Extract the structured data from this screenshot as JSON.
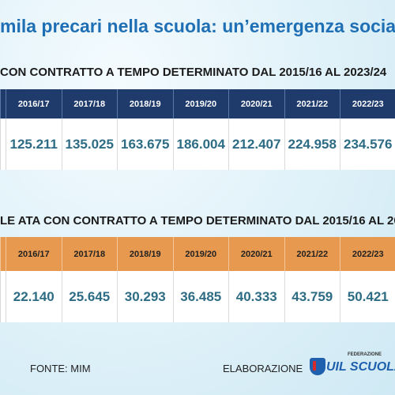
{
  "title": "mila precari nella scuola: un’emergenza socia",
  "table1": {
    "heading": "CON CONTRATTO A TEMPO DETERMINATO DAL 2015/16 AL 2023/24",
    "columns": [
      "2016/17",
      "2017/18",
      "2018/19",
      "2019/20",
      "2020/21",
      "2021/22",
      "2022/23"
    ],
    "values": [
      "125.211",
      "135.025",
      "163.675",
      "186.004",
      "212.407",
      "224.958",
      "234.576"
    ]
  },
  "table2": {
    "heading": "LE ATA CON CONTRATTO A TEMPO DETERMINATO DAL 2015/16 AL 20",
    "columns": [
      "2016/17",
      "2017/18",
      "2018/19",
      "2019/20",
      "2020/21",
      "2021/22",
      "2022/23"
    ],
    "values": [
      "22.140",
      "25.645",
      "30.293",
      "36.485",
      "40.333",
      "43.759",
      "50.421"
    ]
  },
  "footer": {
    "source": "FONTE: MIM",
    "credit": "ELABORAZIONE",
    "logo_top": "FEDERAZIONE",
    "logo": "UIL SCUOLA RUA"
  }
}
